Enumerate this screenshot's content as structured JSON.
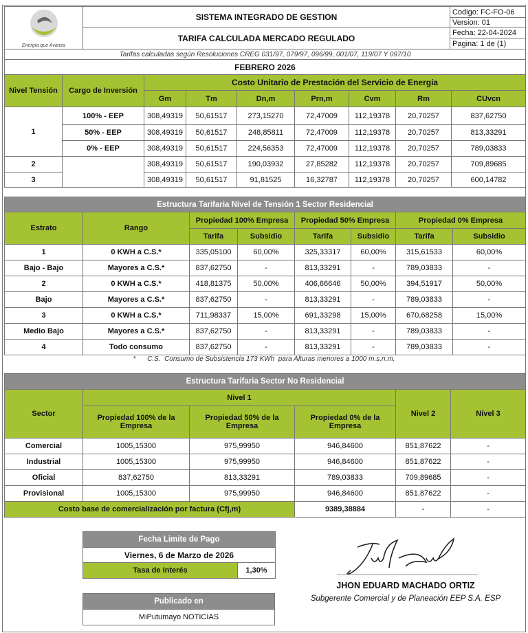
{
  "header": {
    "logo_text": "EMPRESA DE ENERGIA",
    "logo_slogan": "Energía que Avanza",
    "title1": "SISTEMA INTEGRADO DE GESTION",
    "title2": "TARIFA CALCULADA MERCADO REGULADO",
    "codigo": "Codigo:  FC-FO-06",
    "version": "Version: 01",
    "fecha": "Fecha:   22-04-2024",
    "pagina": "Pagina:   1 de (1)",
    "resoluciones": "Tarifas calculadas según Resoluciones CREG 031/97, 079/97, 096/99, 001/07, 119/07 Y 097/10",
    "period": "FEBRERO 2026"
  },
  "cu_table": {
    "col_nivel": "Nivel Tensión",
    "col_cargo": "Cargo de Inversión",
    "group": "Costo Unitario de Prestación del Servicio de Energia",
    "cols": [
      "Gm",
      "Tm",
      "Dn,m",
      "Prn,m",
      "Cvm",
      "Rm",
      "CUvcn"
    ],
    "rows": [
      {
        "nivel": "1",
        "cargo": "100% - EEP",
        "v": [
          "308,49319",
          "50,61517",
          "273,15270",
          "72,47009",
          "112,19378",
          "20,70257",
          "837,62750"
        ]
      },
      {
        "nivel": "",
        "cargo": "50% - EEP",
        "v": [
          "308,49319",
          "50,61517",
          "248,85811",
          "72,47009",
          "112,19378",
          "20,70257",
          "813,33291"
        ]
      },
      {
        "nivel": "",
        "cargo": "0% - EEP",
        "v": [
          "308,49319",
          "50,61517",
          "224,56353",
          "72,47009",
          "112,19378",
          "20,70257",
          "789,03833"
        ]
      },
      {
        "nivel": "2",
        "cargo": "",
        "v": [
          "308,49319",
          "50,61517",
          "190,03932",
          "27,85282",
          "112,19378",
          "20,70257",
          "709,89685"
        ]
      },
      {
        "nivel": "3",
        "cargo": "",
        "v": [
          "308,49319",
          "50,61517",
          "91,81525",
          "16,32787",
          "112,19378",
          "20,70257",
          "600,14782"
        ]
      }
    ]
  },
  "residencial": {
    "title": "Estructura Tarifaria Nivel de Tensión 1 Sector Residencial",
    "col_estrato": "Estrato",
    "col_rango": "Rango",
    "groups": [
      "Propiedad 100% Empresa",
      "Propiedad 50% Empresa",
      "Propiedad 0% Empresa"
    ],
    "sub": [
      "Tarifa",
      "Subsidio"
    ],
    "rows": [
      {
        "estrato": "1",
        "rango": "0 KWH a C.S.*",
        "v": [
          "335,05100",
          "60,00%",
          "325,33317",
          "60,00%",
          "315,61533",
          "60,00%"
        ]
      },
      {
        "estrato": "Bajo - Bajo",
        "rango": "Mayores a C.S.*",
        "v": [
          "837,62750",
          "-",
          "813,33291",
          "-",
          "789,03833",
          "-"
        ]
      },
      {
        "estrato": "2",
        "rango": "0 KWH a C.S.*",
        "v": [
          "418,81375",
          "50,00%",
          "406,66646",
          "50,00%",
          "394,51917",
          "50,00%"
        ]
      },
      {
        "estrato": "Bajo",
        "rango": "Mayores a C.S.*",
        "v": [
          "837,62750",
          "-",
          "813,33291",
          "-",
          "789,03833",
          "-"
        ]
      },
      {
        "estrato": "3",
        "rango": "0 KWH a C.S.*",
        "v": [
          "711,98337",
          "15,00%",
          "691,33298",
          "15,00%",
          "670,68258",
          "15,00%"
        ]
      },
      {
        "estrato": "Medio Bajo",
        "rango": "Mayores a C.S.*",
        "v": [
          "837,62750",
          "-",
          "813,33291",
          "-",
          "789,03833",
          "-"
        ]
      },
      {
        "estrato": "4",
        "rango": "Todo consumo",
        "v": [
          "837,62750",
          "-",
          "813,33291",
          "-",
          "789,03833",
          "-"
        ]
      }
    ],
    "footnote": "*      C.S.  Consumo de Subsistencia 173 KWh  para Alturas menores a 1000 m.s.n.m."
  },
  "no_residencial": {
    "title": "Estructura Tarifaria Sector No Residencial",
    "col_sector": "Sector",
    "nivel1": "Nivel 1",
    "nivel2": "Nivel 2",
    "nivel3": "Nivel 3",
    "sub": [
      "Propiedad 100% de la Empresa",
      "Propiedad 50% de la Empresa",
      "Propiedad 0% de la Empresa"
    ],
    "rows": [
      {
        "sector": "Comercial",
        "v": [
          "1005,15300",
          "975,99950",
          "946,84600",
          "851,87622",
          "-"
        ]
      },
      {
        "sector": "Industrial",
        "v": [
          "1005,15300",
          "975,99950",
          "946,84600",
          "851,87622",
          "-"
        ]
      },
      {
        "sector": "Oficial",
        "v": [
          "837,62750",
          "813,33291",
          "789,03833",
          "709,89685",
          "-"
        ]
      },
      {
        "sector": "Provisional",
        "v": [
          "1005,15300",
          "975,99950",
          "946,84600",
          "851,87622",
          "-"
        ]
      }
    ],
    "costo_label": "Costo base de comercialización por factura (Cfj,m)",
    "costo_value": "9389,38884",
    "costo_n2": "-",
    "costo_n3": "-"
  },
  "pago": {
    "title": "Fecha Limite de Pago",
    "date": "Viernes, 6 de Marzo de 2026",
    "tasa_label": "Tasa de Interés",
    "tasa_value": "1,30%",
    "pub_title": "Publicado en",
    "pub_value": "MiPutumayo NOTICIAS"
  },
  "signature": {
    "name": "JHON EDUARD MACHADO ORTIZ",
    "role": "Subgerente Comercial y de Planeación EEP S.A. ESP"
  },
  "colors": {
    "green": "#a4c232",
    "gray": "#8d8d8d"
  }
}
